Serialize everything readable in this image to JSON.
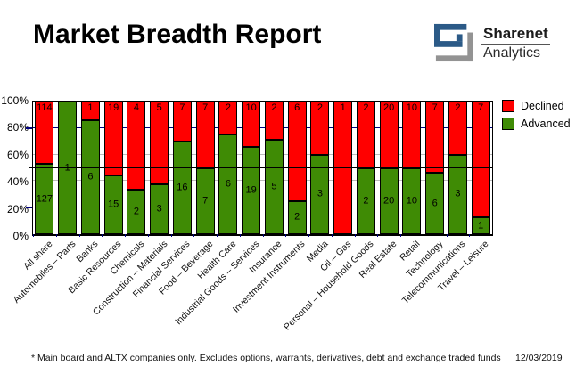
{
  "header": {
    "title": "Market Breadth Report",
    "logo": {
      "line1": "Sharenet",
      "line2": "Analytics"
    }
  },
  "colors": {
    "declined": "#ff0000",
    "advanced": "#3f8b05",
    "grid_major": "#000080",
    "grid_minor": "#bbbbbb",
    "midline": "#000000",
    "logo_blue": "#2b5a87",
    "logo_gray": "#939393"
  },
  "chart_data": {
    "type": "bar",
    "subtype": "stacked-100-percent",
    "title": "Market Breadth Report",
    "xlabel": "",
    "ylabel": "",
    "ylim": [
      0,
      100
    ],
    "ytick_values": [
      100,
      80,
      60,
      40,
      20,
      0
    ],
    "ytick_labels": [
      "100%",
      "80%",
      "60%",
      "40%",
      "20%",
      "0%"
    ],
    "grid": "horizontal; navy at 20% and 80%, light gray at 40% and 60%, solid black line at 50%",
    "legend_position": "top-right-outside",
    "categories": [
      "All share",
      "Automobiles – Parts",
      "Banks",
      "Basic Resources",
      "Chemicals",
      "Construction – Materials",
      "Financial Services",
      "Food – Beverage",
      "Health Care",
      "Industrial Goods – Services",
      "Insurance",
      "Investment Instruments",
      "Media",
      "Oil – Gas",
      "Personal – Household Goods",
      "Real Estate",
      "Retail",
      "Technology",
      "Telecommunications",
      "Travel – Leisure"
    ],
    "series": [
      {
        "name": "Declined",
        "color": "#ff0000",
        "values": [
          114,
          0,
          1,
          19,
          4,
          5,
          7,
          7,
          2,
          10,
          2,
          6,
          2,
          1,
          2,
          20,
          10,
          7,
          2,
          7
        ]
      },
      {
        "name": "Advanced",
        "color": "#3f8b05",
        "values": [
          127,
          1,
          6,
          15,
          2,
          3,
          16,
          7,
          6,
          19,
          5,
          2,
          3,
          0,
          2,
          20,
          10,
          6,
          3,
          1
        ]
      }
    ]
  },
  "footer": {
    "note": "* Main board and ALTX companies only. Excludes options, warrants, derivatives, debt and exchange traded funds",
    "date": "12/03/2019"
  }
}
